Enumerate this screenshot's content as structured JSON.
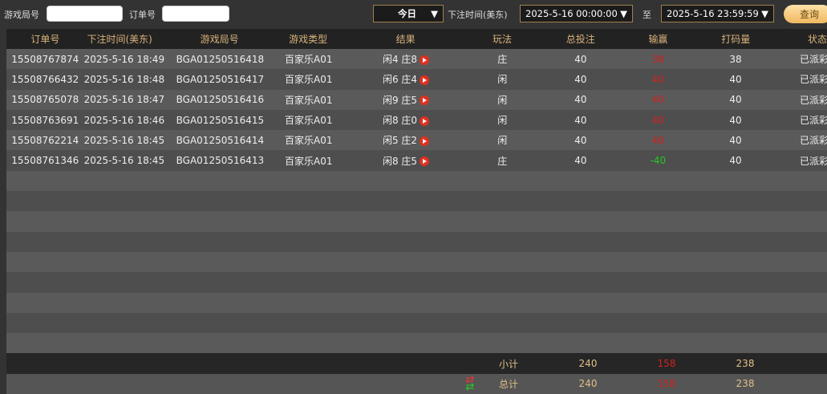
{
  "filters": {
    "round_label": "游戏局号",
    "round_value": "",
    "order_label": "订单号",
    "order_value": "",
    "range_select": "今日",
    "time_label": "下注时间(美东)",
    "start": "2025-5-16 00:00:00",
    "to_label": "至",
    "end": "2025-5-16 23:59:59",
    "query_label": "查询"
  },
  "columns": [
    "订单号",
    "下注时间(美东)",
    "游戏局号",
    "游戏类型",
    "结果",
    "玩法",
    "总投注",
    "输赢",
    "打码量",
    "状态"
  ],
  "rows": [
    [
      "15508767874",
      "2025-5-16 18:49",
      "BGA01250516418",
      "百家乐A01",
      "闲4 庄8",
      "庄",
      "40",
      "38",
      "38",
      "已派彩"
    ],
    [
      "15508766432",
      "2025-5-16 18:48",
      "BGA01250516417",
      "百家乐A01",
      "闲6 庄4",
      "闲",
      "40",
      "40",
      "40",
      "已派彩"
    ],
    [
      "15508765078",
      "2025-5-16 18:47",
      "BGA01250516416",
      "百家乐A01",
      "闲9 庄5",
      "闲",
      "40",
      "40",
      "40",
      "已派彩"
    ],
    [
      "15508763691",
      "2025-5-16 18:46",
      "BGA01250516415",
      "百家乐A01",
      "闲8 庄0",
      "闲",
      "40",
      "40",
      "40",
      "已派彩"
    ],
    [
      "15508762214",
      "2025-5-16 18:45",
      "BGA01250516414",
      "百家乐A01",
      "闲5 庄2",
      "闲",
      "40",
      "40",
      "40",
      "已派彩"
    ],
    [
      "15508761346",
      "2025-5-16 18:45",
      "BGA01250516413",
      "百家乐A01",
      "闲8 庄5",
      "庄",
      "40",
      "-40",
      "40",
      "已派彩"
    ]
  ],
  "subtotal": {
    "label": "小计",
    "bet": "240",
    "winloss": "158",
    "valid": "238"
  },
  "total": {
    "label": "总计",
    "bet": "240",
    "winloss": "158",
    "valid": "238"
  },
  "colors": {
    "win": "#d42020",
    "loss": "#22c922",
    "accent": "#d8b27a"
  }
}
